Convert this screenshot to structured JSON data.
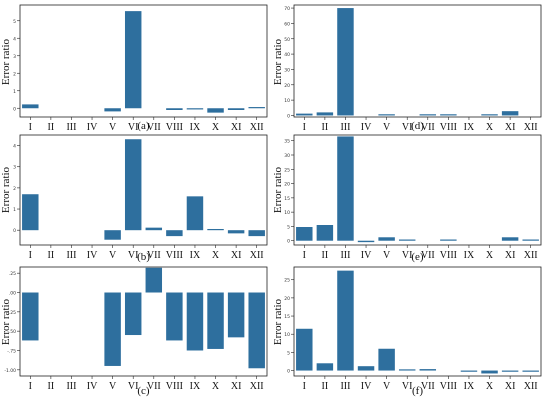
{
  "colors": {
    "bar": "#2e6f9e",
    "axis": "#222222",
    "tick_text": "#333333"
  },
  "chart_data": [
    {
      "type": "bar",
      "panel": "(a)",
      "ylabel": "Error ratio",
      "ylim": [
        -0.5,
        5.9
      ],
      "yticks": [
        0,
        1,
        2,
        3,
        4,
        5
      ],
      "ytick_labels": [
        "0",
        "1",
        "2",
        "3",
        "4",
        "5"
      ],
      "categories": [
        "I",
        "II",
        "III",
        "IV",
        "V",
        "VI",
        "VII",
        "VIII",
        "IX",
        "X",
        "XI",
        "XII"
      ],
      "values": [
        0.22,
        0,
        0,
        0,
        -0.18,
        5.55,
        0,
        -0.1,
        -0.05,
        -0.25,
        -0.1,
        0.05
      ]
    },
    {
      "type": "bar",
      "panel": "(d)",
      "ylabel": "Error ratio",
      "ylim": [
        -1,
        72
      ],
      "yticks": [
        0,
        10,
        20,
        30,
        40,
        50,
        60,
        70
      ],
      "ytick_labels": [
        "0",
        "10",
        "20",
        "30",
        "40",
        "50",
        "60",
        "70"
      ],
      "categories": [
        "I",
        "II",
        "III",
        "IV",
        "V",
        "VI",
        "VII",
        "VIII",
        "IX",
        "X",
        "XI",
        "XII"
      ],
      "values": [
        1.2,
        2.0,
        70.0,
        0,
        0.4,
        0,
        0.2,
        0.2,
        0,
        0.2,
        2.8,
        0
      ]
    },
    {
      "type": "bar",
      "panel": "(b)",
      "ylabel": "Error ratio",
      "ylim": [
        -0.7,
        4.5
      ],
      "yticks": [
        0,
        1,
        2,
        3,
        4
      ],
      "ytick_labels": [
        "0",
        "1",
        "2",
        "3",
        "4"
      ],
      "categories": [
        "I",
        "II",
        "III",
        "IV",
        "V",
        "VI",
        "VII",
        "VIII",
        "IX",
        "X",
        "XI",
        "XII"
      ],
      "values": [
        1.7,
        0,
        0,
        0,
        -0.45,
        4.3,
        0.12,
        -0.28,
        1.6,
        0.05,
        -0.15,
        -0.28
      ]
    },
    {
      "type": "bar",
      "panel": "(e)",
      "ylabel": "Error ratio",
      "ylim": [
        -1.5,
        37
      ],
      "yticks": [
        0,
        5,
        10,
        15,
        20,
        25,
        30,
        35
      ],
      "ytick_labels": [
        "0",
        "5",
        "10",
        "15",
        "20",
        "25",
        "30",
        "35"
      ],
      "categories": [
        "I",
        "II",
        "III",
        "IV",
        "V",
        "VI",
        "VII",
        "VIII",
        "IX",
        "X",
        "XI",
        "XII"
      ],
      "values": [
        4.8,
        5.5,
        36.5,
        -0.5,
        1.2,
        0.1,
        0,
        0.1,
        0,
        0,
        1.2,
        0.2
      ]
    },
    {
      "type": "bar",
      "panel": "(c)",
      "ylabel": "Error ratio",
      "ylim": [
        -1.08,
        0.33
      ],
      "yticks": [
        -1.0,
        -0.75,
        -0.5,
        -0.25,
        0,
        0.25
      ],
      "ytick_labels": [
        "-1.00",
        "-.75",
        "-.50",
        "-.25",
        ".00",
        ".25"
      ],
      "categories": [
        "I",
        "II",
        "III",
        "IV",
        "V",
        "VI",
        "VII",
        "VIII",
        "IX",
        "X",
        "XI",
        "XII"
      ],
      "values": [
        -0.62,
        0,
        0,
        0,
        -0.95,
        -0.55,
        0.32,
        -0.62,
        -0.75,
        -0.73,
        -0.58,
        -0.98
      ]
    },
    {
      "type": "bar",
      "panel": "(f)",
      "ylabel": "Error ratio",
      "ylim": [
        -1.5,
        28.5
      ],
      "yticks": [
        0,
        5,
        10,
        15,
        20,
        25
      ],
      "ytick_labels": [
        "0",
        "5",
        "10",
        "15",
        "20",
        "25"
      ],
      "categories": [
        "I",
        "II",
        "III",
        "IV",
        "V",
        "VI",
        "VII",
        "VIII",
        "IX",
        "X",
        "XI",
        "XII"
      ],
      "values": [
        11.5,
        2.0,
        27.5,
        1.2,
        6.0,
        0.2,
        0.4,
        0,
        -0.2,
        -0.8,
        -0.3,
        -0.2
      ],
      "baselines": [
        0,
        0,
        0,
        0,
        0,
        0,
        0,
        0,
        0,
        0,
        0,
        0
      ]
    }
  ]
}
